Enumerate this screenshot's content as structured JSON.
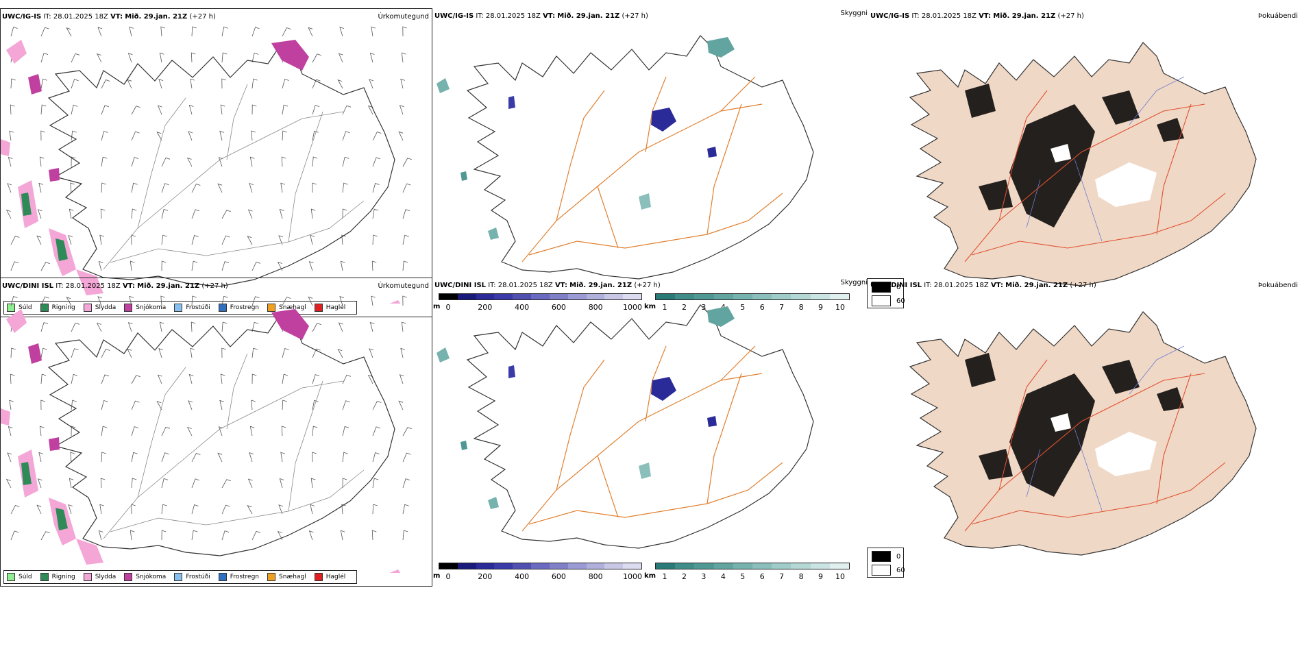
{
  "rows": [
    {
      "model": "UWC/IG-IS",
      "it_label": "IT:",
      "it_value": "28.01.2025 18Z",
      "vt_label": "VT:",
      "vt_value": "Mið. 29.jan. 21Z",
      "lead": "(+27 h)",
      "panel1_name": "Úrkomutegund",
      "panel2_name": "Skyggni",
      "panel3_name": "Þokuábendi"
    },
    {
      "model": "UWC/DINI ISL",
      "it_label": "IT:",
      "it_value": "28.01.2025 18Z",
      "vt_label": "VT:",
      "vt_value": "Mið. 29.jan. 21Z",
      "lead": "(+27 h)",
      "panel1_name": "Úrkomutegund",
      "panel2_name": "Skyggni",
      "panel3_name": "Þokuábendi"
    }
  ],
  "precip_legend": [
    {
      "label": "Súld",
      "color": "#90ee90"
    },
    {
      "label": "Rigning",
      "color": "#2e8b57"
    },
    {
      "label": "Slydda",
      "color": "#f4a6d7"
    },
    {
      "label": "Snjókoma",
      "color": "#c040a0"
    },
    {
      "label": "Frostúði",
      "color": "#87c0ee"
    },
    {
      "label": "Frostregn",
      "color": "#3070c0"
    },
    {
      "label": "Snæhagl",
      "color": "#f0a020"
    },
    {
      "label": "Haglél",
      "color": "#e02020"
    }
  ],
  "visibility_m_scale": {
    "unit": "m",
    "ticks": [
      "0",
      "200",
      "400",
      "600",
      "800",
      "1000"
    ],
    "colors": [
      "#000000",
      "#1a1a7a",
      "#2a2a98",
      "#3a3aa8",
      "#5050b0",
      "#6a6ac0",
      "#8080c8",
      "#9a9ad4",
      "#b0b0dc",
      "#c8c8e6",
      "#dcdcf0"
    ]
  },
  "visibility_km_scale": {
    "unit": "km",
    "ticks": [
      "1",
      "2",
      "3",
      "4",
      "5",
      "6",
      "7",
      "8",
      "9",
      "10"
    ],
    "colors": [
      "#2a7a78",
      "#3f8c88",
      "#4f9894",
      "#62a5a0",
      "#76b2ae",
      "#8abfbb",
      "#9fccc8",
      "#b4d8d5",
      "#c9e4e2",
      "#e0f0ee"
    ]
  },
  "fog_legend": {
    "items": [
      {
        "label": "0",
        "color": "#000000"
      },
      {
        "label": "60",
        "color": "#ffffff"
      }
    ]
  }
}
